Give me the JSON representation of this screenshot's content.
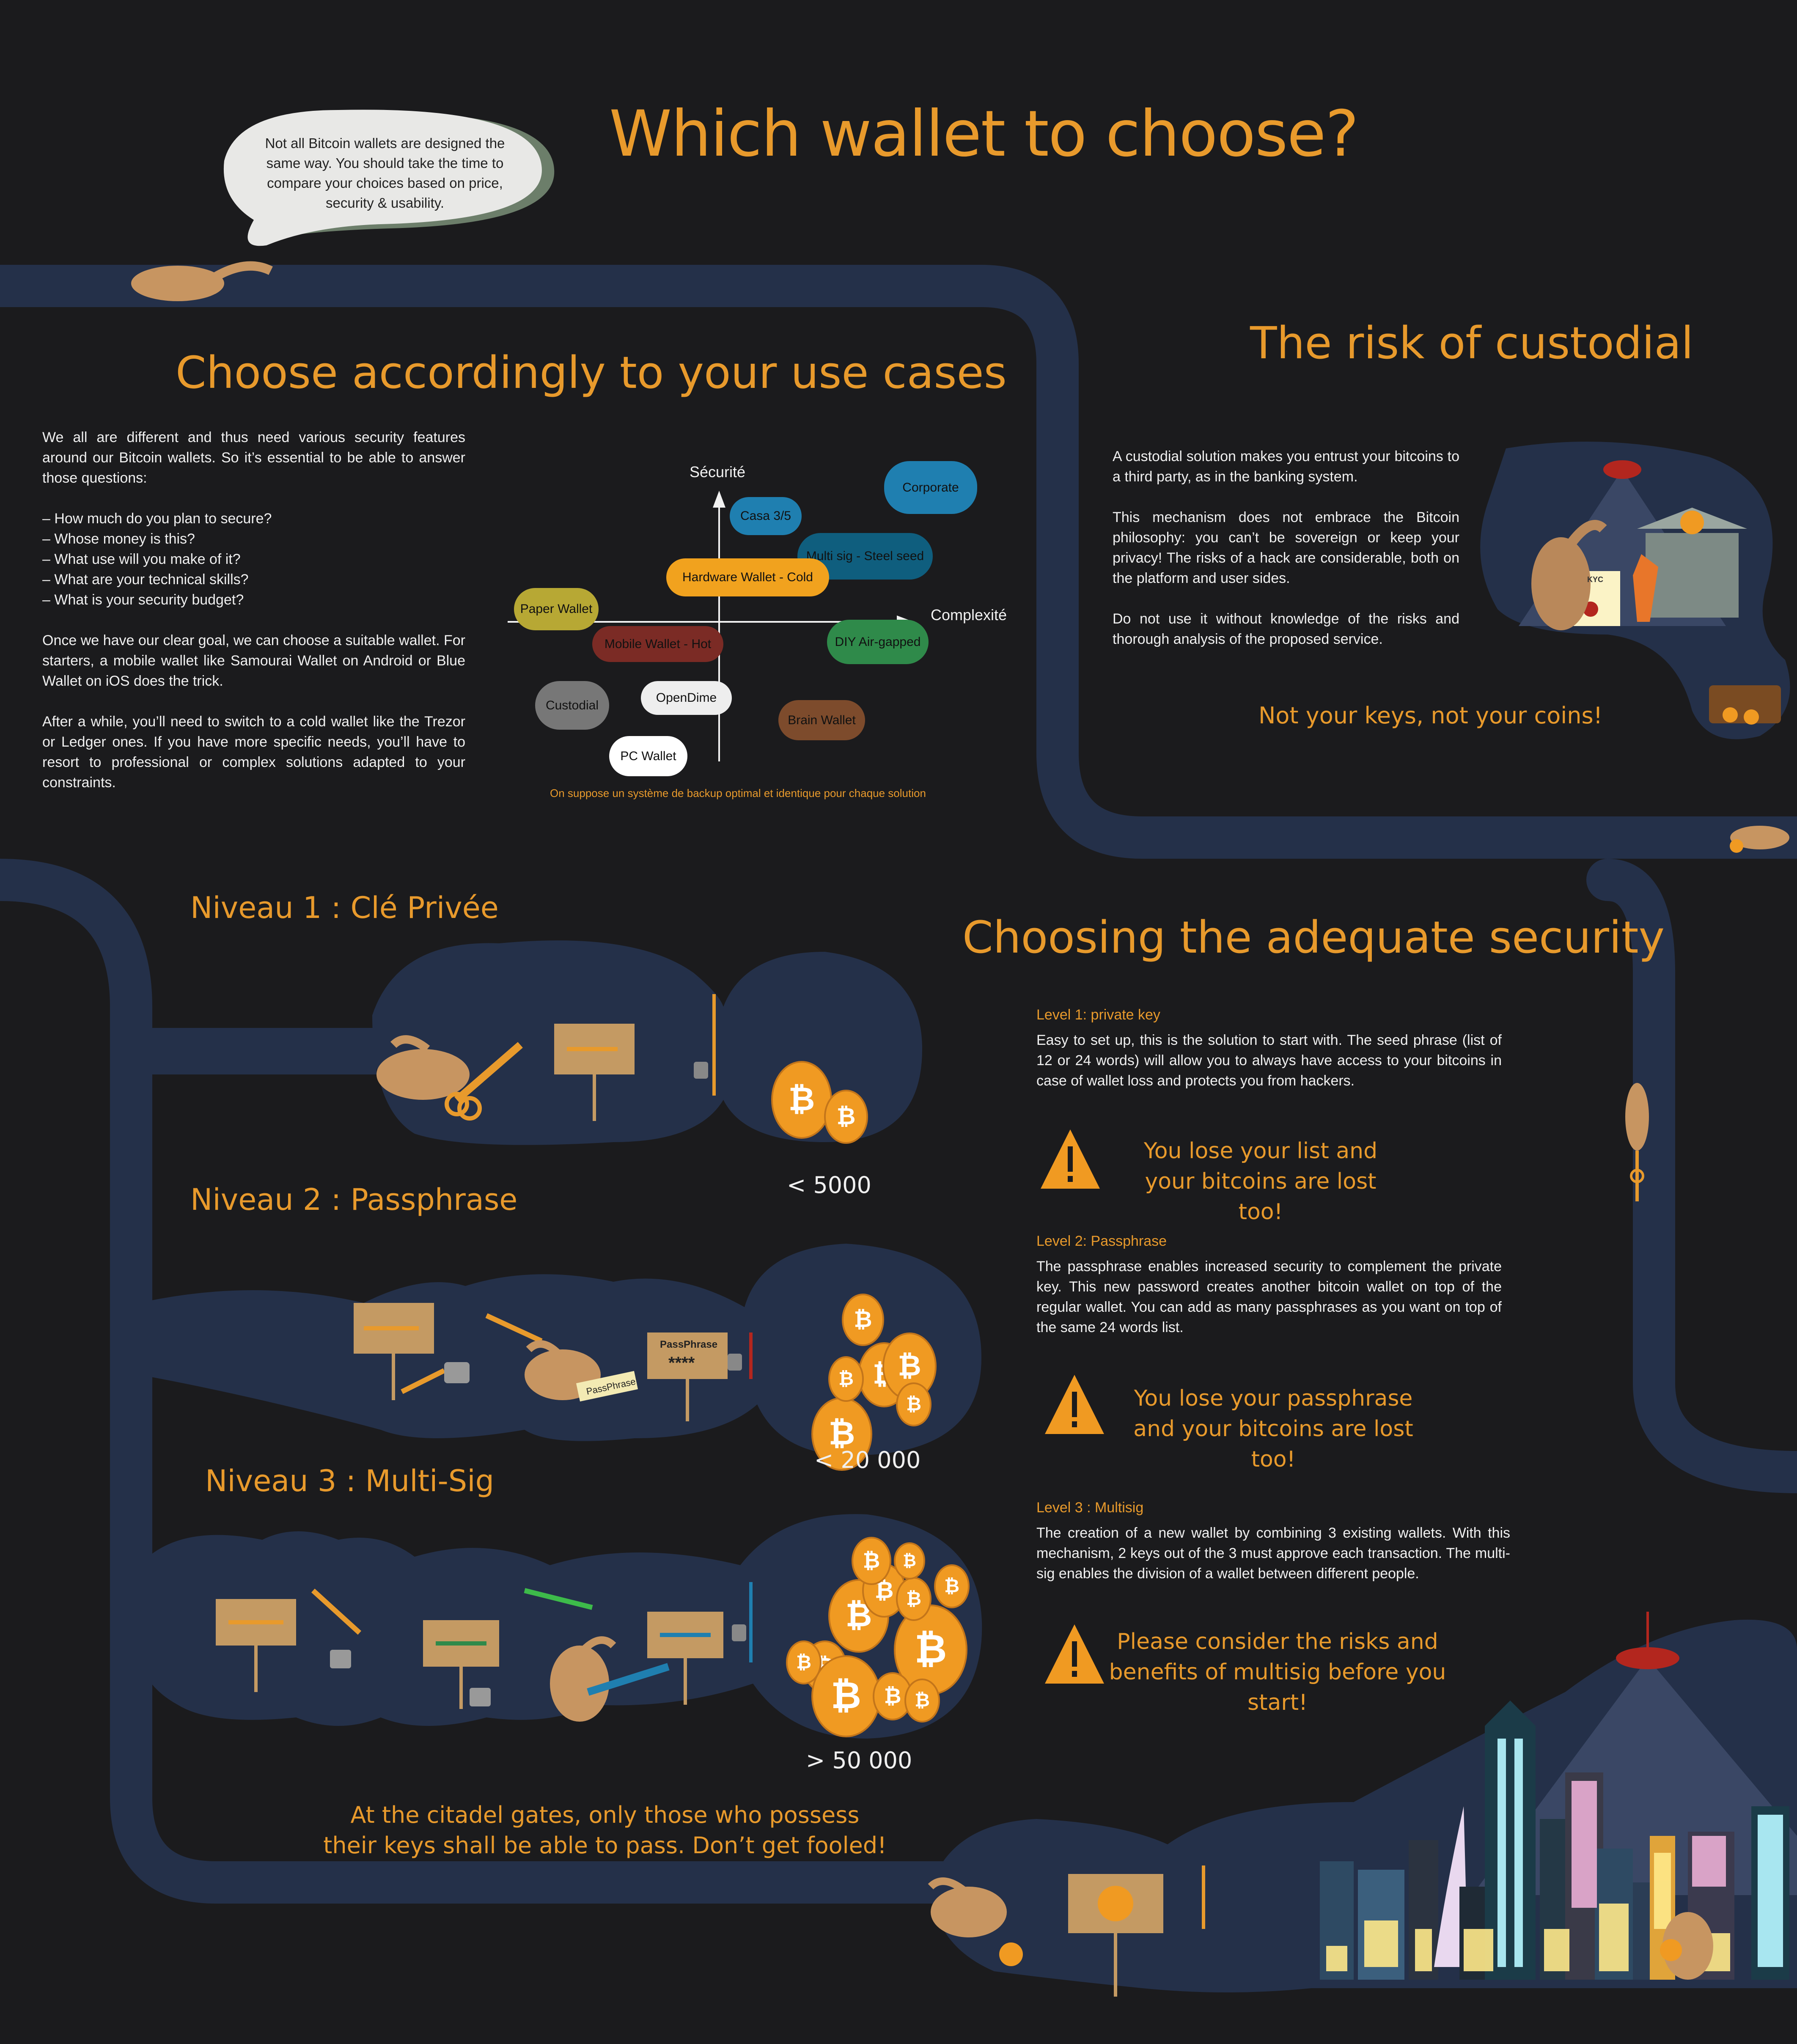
{
  "header": {
    "title": "Which wallet to choose?",
    "bubble": "Not all Bitcoin wallets are designed the same way. You should take the time to compare your choices based on price, security & usability."
  },
  "use_cases": {
    "title": "Choose accordingly to your use cases",
    "intro": "We all are different and thus need various security features around our Bitcoin wallets. So it’s essential to be able to answer those questions:",
    "questions": [
      "– How much do you plan to secure?",
      "– Whose money is this?",
      "– What use will you make of it?",
      "– What are your technical skills?",
      "– What is your security budget?"
    ],
    "para2": "Once we have our clear goal, we can choose a suitable wallet. For starters, a mobile wallet like Samourai Wallet on Android or Blue Wallet on iOS does the trick.",
    "para3": "After a while, you’ll need to switch to a cold wallet like the Trezor or Ledger ones. If you have more specific needs, you’ll have to resort to professional or complex solutions adapted to your constraints."
  },
  "matrix": {
    "y_label": "Sécurité",
    "x_label": "Complexité",
    "footnote": "On suppose un système de backup optimal et identique pour chaque solution",
    "wallets": [
      {
        "label": "Corporate",
        "color": "#1f7fb0"
      },
      {
        "label": "Casa 3/5",
        "color": "#1f7fb0"
      },
      {
        "label": "Multi sig - Steel seed",
        "color": "#0f5e7e"
      },
      {
        "label": "Hardware Wallet - Cold",
        "color": "#f1a21e"
      },
      {
        "label": "Paper Wallet",
        "color": "#b7a834"
      },
      {
        "label": "Mobile Wallet - Hot",
        "color": "#7b2b25"
      },
      {
        "label": "DIY Air-gapped",
        "color": "#2f8a4a"
      },
      {
        "label": "Custodial",
        "color": "#777777"
      },
      {
        "label": "OpenDime",
        "color": "#eeeeee"
      },
      {
        "label": "Brain Wallet",
        "color": "#7d4b2c"
      },
      {
        "label": "PC Wallet",
        "color": "#ffffff"
      }
    ]
  },
  "custodial": {
    "title": "The risk of custodial",
    "p1": "A custodial solution makes you entrust your bitcoins to a third party, as in the banking system.",
    "p2": "This mechanism does not embrace the Bitcoin philosophy: you can’t be sovereign or keep your privacy! The risks of a hack are considerable, both on the platform and user sides.",
    "p3": "Do not use it without knowledge of the risks and thorough analysis of the proposed service.",
    "motto": "Not your keys, not your coins!",
    "kyc": "KYC"
  },
  "levels": [
    {
      "title": "Niveau 1 : Clé Privée",
      "amount": "< 5000"
    },
    {
      "title": "Niveau 2 : Passphrase",
      "amount": "< 20 000",
      "sign": "PassPhrase",
      "stars": "****",
      "tag": "PassPhrase"
    },
    {
      "title": "Niveau 3 : Multi-Sig",
      "amount": "> 50 000"
    }
  ],
  "security": {
    "title": "Choosing the adequate security",
    "l1_head": "Level 1: private key",
    "l1_body": "Easy to set up, this is the solution to start with. The seed phrase (list of 12 or 24 words) will allow you to always have access to your bitcoins in case of wallet loss and protects you from hackers.",
    "l1_warn": "You lose your list and your bitcoins are lost too!",
    "l2_head": "Level 2: Passphrase",
    "l2_body": "The passphrase enables increased security to complement the private key. This new password creates another bitcoin wallet on top of the regular wallet. You can add as many passphrases as you want on top of the same 24 words list.",
    "l2_warn": "You lose your passphrase and your bitcoins are lost too!",
    "l3_head": "Level 3 : Multisig",
    "l3_body": "The creation of a new wallet by combining 3 existing wallets. With this mechanism, 2 keys out of the 3 must approve each transaction. The multi-sig enables the division of a wallet between different people.",
    "l3_warn": "Please consider the risks and benefits of multisig before you start!"
  },
  "footer": {
    "citadel": "At the citadel gates, only those who possess their keys shall be able to pass. Don’t get fooled!"
  },
  "colors": {
    "background": "#1b1b1d",
    "tunnel": "#243049",
    "accent": "#e89a2c",
    "coin": "#f09a22"
  }
}
